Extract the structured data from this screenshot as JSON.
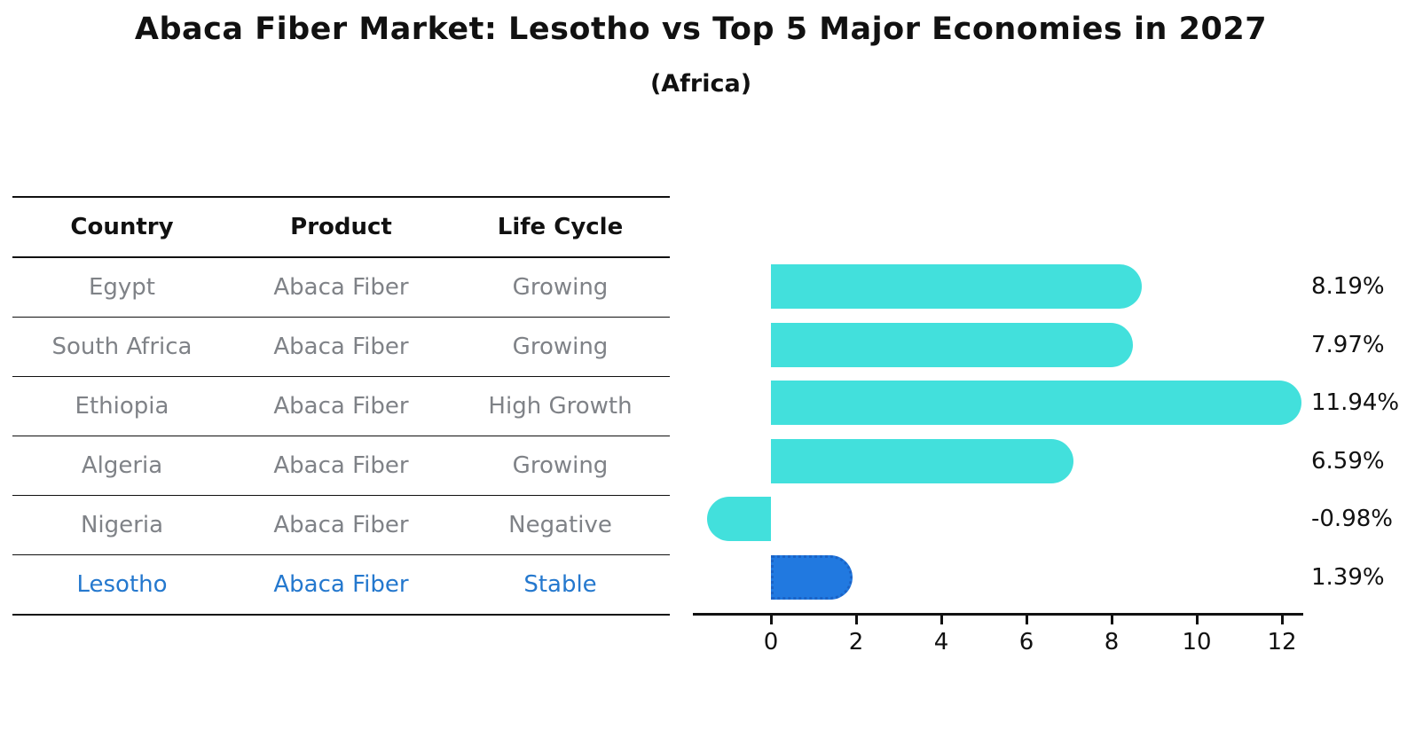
{
  "title": "Abaca Fiber Market: Lesotho vs Top 5 Major Economies in 2027",
  "subtitle": "(Africa)",
  "table": {
    "headers": [
      "Country",
      "Product",
      "Life Cycle"
    ],
    "rows": [
      {
        "country": "Egypt",
        "product": "Abaca Fiber",
        "life_cycle": "Growing",
        "highlight": false
      },
      {
        "country": "South Africa",
        "product": "Abaca Fiber",
        "life_cycle": "Growing",
        "highlight": false
      },
      {
        "country": "Ethiopia",
        "product": "Abaca Fiber",
        "life_cycle": "High Growth",
        "highlight": false
      },
      {
        "country": "Algeria",
        "product": "Abaca Fiber",
        "life_cycle": "Growing",
        "highlight": false
      },
      {
        "country": "Nigeria",
        "product": "Abaca Fiber",
        "life_cycle": "Negative",
        "highlight": false
      },
      {
        "country": "Lesotho",
        "product": "Abaca Fiber",
        "life_cycle": "Stable",
        "highlight": true
      }
    ]
  },
  "chart_data": {
    "type": "bar",
    "orientation": "horizontal",
    "title": "",
    "xlabel": "",
    "ylabel": "",
    "categories": [
      "Egypt",
      "South Africa",
      "Ethiopia",
      "Algeria",
      "Nigeria",
      "Lesotho"
    ],
    "values": [
      8.19,
      7.97,
      11.94,
      6.59,
      -0.98,
      1.39
    ],
    "value_labels": [
      "8.19%",
      "7.97%",
      "11.94%",
      "6.59%",
      "-0.98%",
      "1.39%"
    ],
    "x_ticks": [
      0,
      2,
      4,
      6,
      8,
      10,
      12
    ],
    "xlim": [
      -1.85,
      12.55
    ],
    "grid": false,
    "legend": false,
    "highlight_index": 5
  },
  "colors": {
    "bar_default": "#42e0dc",
    "bar_highlight": "#2179e0",
    "bar_highlight_edge": "#1b63c6",
    "highlight_text": "#2478ce",
    "table_text": "#7f8287",
    "axis_and_titles": "#111111"
  }
}
